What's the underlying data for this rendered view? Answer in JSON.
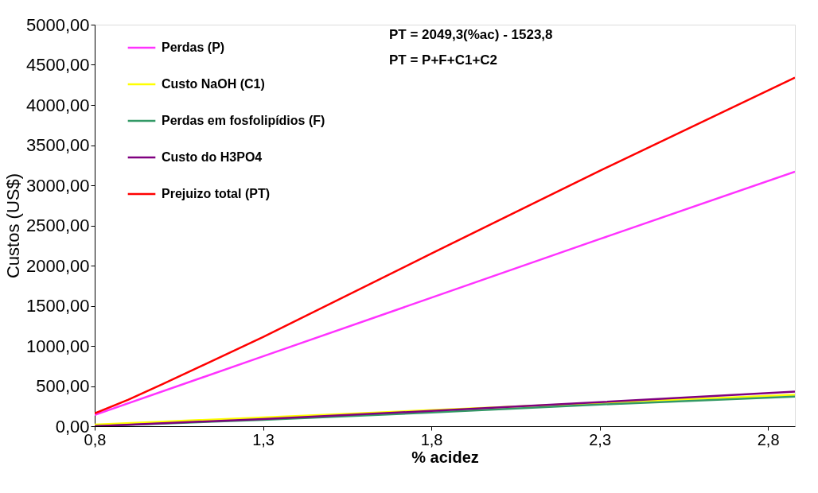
{
  "chart_data": {
    "type": "line",
    "xlabel": "% acidez",
    "ylabel": "Custos (US$)",
    "annotations": [
      "PT = 2049,3(%ac) - 1523,8",
      "PT = P+F+C1+C2"
    ],
    "xlim": [
      0.8,
      2.88
    ],
    "xticks": [
      {
        "value": 0.8,
        "label": "0,8"
      },
      {
        "value": 1.3,
        "label": "1,3"
      },
      {
        "value": 1.8,
        "label": "1,8"
      },
      {
        "value": 2.3,
        "label": "2,3"
      },
      {
        "value": 2.8,
        "label": "2,8"
      }
    ],
    "ylim": [
      0,
      5000
    ],
    "yticks": [
      {
        "value": 0,
        "label": "0,00"
      },
      {
        "value": 500,
        "label": "500,00"
      },
      {
        "value": 1000,
        "label": "1000,00"
      },
      {
        "value": 1500,
        "label": "1500,00"
      },
      {
        "value": 2000,
        "label": "2000,00"
      },
      {
        "value": 2500,
        "label": "2500,00"
      },
      {
        "value": 3000,
        "label": "3000,00"
      },
      {
        "value": 3500,
        "label": "3500,00"
      },
      {
        "value": 4000,
        "label": "4000,00"
      },
      {
        "value": 4500,
        "label": "4500,00"
      },
      {
        "value": 5000,
        "label": "5000,00"
      }
    ],
    "grid": false,
    "legend": "top left",
    "marker": "none",
    "line_style": "solid",
    "series": [
      {
        "name": "Perdas (P)",
        "color": "#ff33ff",
        "x": [
          0.8,
          1.3,
          1.8,
          2.3,
          2.88
        ],
        "values": [
          140,
          870,
          1600,
          2330,
          3170
        ]
      },
      {
        "name": "Custo NaOH (C1)",
        "color": "#ffff00",
        "x": [
          0.8,
          1.3,
          1.8,
          2.3,
          2.88
        ],
        "values": [
          20,
          110,
          200,
          290,
          390
        ]
      },
      {
        "name": "Perdas em fosfolipídios (F)",
        "color": "#339966",
        "x": [
          0.8,
          1.3,
          1.8,
          2.3,
          2.88
        ],
        "values": [
          0,
          80,
          170,
          270,
          370
        ]
      },
      {
        "name": "Custo do H3PO4",
        "color": "#800080",
        "x": [
          0.8,
          1.3,
          1.8,
          2.3,
          2.88
        ],
        "values": [
          0,
          90,
          190,
          300,
          430
        ]
      },
      {
        "name": "Prejuizo total (PT)",
        "color": "#ff0000",
        "x": [
          0.8,
          0.9,
          1.0,
          1.3,
          1.8,
          2.3,
          2.88
        ],
        "values": [
          160,
          330,
          520,
          1110,
          2150,
          3180,
          4340
        ]
      }
    ]
  }
}
